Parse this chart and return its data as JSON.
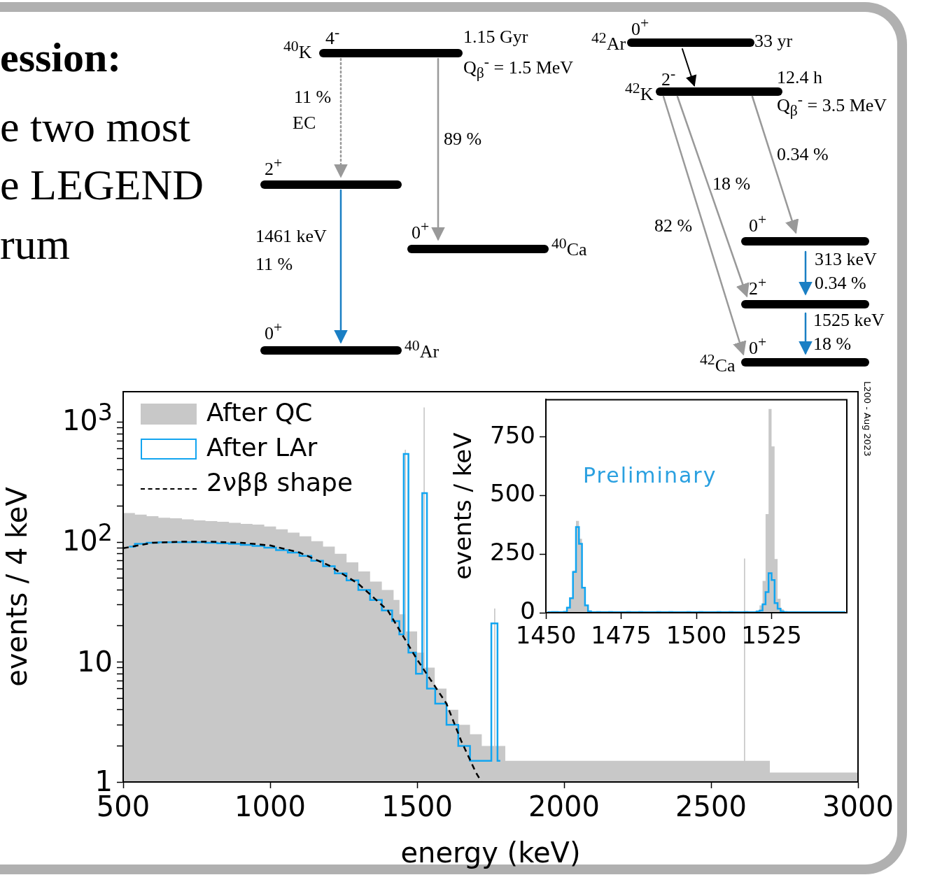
{
  "chart_data": [
    {
      "type": "other",
      "annotations": [
        "ession:",
        "e two most",
        "e LEGEND",
        "rum",
        "$^{40}$K",
        "4$^{-}$",
        "1.15 Gyr",
        "Q$_{β}$$^{-}$ = 1.5 MeV",
        "11 %",
        "EC",
        "89 %",
        "2$^{+}$",
        "0$^{+}$",
        "$^{40}$Ca",
        "1461 keV",
        "11 %",
        "0$^{+}$",
        "$^{40}$Ar",
        "0$^{+}$",
        "$^{42}$Ar",
        "33 yr",
        "2$^{-}$",
        "$^{42}$K",
        "12.4 h",
        "Q$_{β}$$^{-}$ = 3.5 MeV",
        "0.34 %",
        "18 %",
        "82 %",
        "0$^{+}$",
        "313 keV",
        "0.34 %",
        "2$^{+}$",
        "1525 keV",
        "18 %",
        "0$^{+}$",
        "$^{42}$Ca"
      ]
    },
    {
      "type": "histogram",
      "xlabel": "energy (keV)",
      "ylabel": "events / 4 keV",
      "log": "y",
      "legend": "top left",
      "annotations": [
        "L200 - Aug 2023"
      ],
      "xlim": [
        500,
        3000
      ],
      "ylim": [
        1,
        1800
      ],
      "xticks": [
        500,
        1000,
        1500,
        2000,
        2500,
        3000
      ],
      "yticks": [
        1,
        {
          "value": 2,
          "label": null
        },
        {
          "value": 3,
          "label": null
        },
        {
          "value": 4,
          "label": null
        },
        {
          "value": 5,
          "label": null
        },
        {
          "value": 6,
          "label": null
        },
        {
          "value": 7,
          "label": null
        },
        {
          "value": 8,
          "label": null
        },
        {
          "value": 9,
          "label": null
        },
        10,
        {
          "value": 20,
          "label": null
        },
        {
          "value": 30,
          "label": null
        },
        {
          "value": 40,
          "label": null
        },
        {
          "value": 50,
          "label": null
        },
        {
          "value": 60,
          "label": null
        },
        {
          "value": 70,
          "label": null
        },
        {
          "value": 80,
          "label": null
        },
        {
          "value": 90,
          "label": null
        },
        {
          "value": 100,
          "label": "10$^{2}$"
        },
        {
          "value": 200,
          "label": null
        },
        {
          "value": 300,
          "label": null
        },
        {
          "value": 400,
          "label": null
        },
        {
          "value": 500,
          "label": null
        },
        {
          "value": 600,
          "label": null
        },
        {
          "value": 700,
          "label": null
        },
        {
          "value": 800,
          "label": null
        },
        {
          "value": 900,
          "label": null
        },
        {
          "value": 1000,
          "label": "10$^{3}$"
        }
      ],
      "bins": [
        500,
        540,
        580,
        620,
        660,
        700,
        740,
        780,
        820,
        860,
        900,
        940,
        980,
        1020,
        1060,
        1100,
        1140,
        1180,
        1220,
        1260,
        1300,
        1340,
        1380,
        1420,
        1440,
        1458,
        1462,
        1500,
        1522,
        1526,
        1560,
        1600,
        1640,
        1680,
        1720,
        1762,
        1766,
        1800,
        1900,
        2000,
        2100,
        2200,
        2300,
        2400,
        2500,
        2612,
        2616,
        2700,
        2800,
        2900,
        3000
      ],
      "series": [
        {
          "name": "After QC",
          "type": "histogram",
          "color": "#c8c8c8",
          "values": [
            175,
            170,
            165,
            160,
            158,
            155,
            152,
            150,
            148,
            145,
            142,
            140,
            135,
            128,
            120,
            112,
            102,
            92,
            80,
            68,
            57,
            47,
            40,
            33,
            25,
            590,
            18,
            12,
            1330,
            9,
            6,
            4,
            3,
            2.5,
            2,
            28,
            2,
            1.5,
            1.5,
            1.5,
            1.5,
            1.5,
            1.5,
            1.5,
            1.5,
            73,
            1.5,
            1.2,
            1.2,
            1.2
          ]
        },
        {
          "name": "After LAr",
          "type": "step",
          "color": "#12a5f0",
          "x": [
            520,
            560,
            600,
            640,
            680,
            720,
            760,
            800,
            840,
            880,
            920,
            960,
            1000,
            1040,
            1080,
            1120,
            1160,
            1200,
            1240,
            1280,
            1320,
            1360,
            1400,
            1430,
            1449,
            1460,
            1481,
            1511,
            1524,
            1543,
            1580,
            1620,
            1660,
            1700,
            1741,
            1764,
            1783
          ],
          "values": [
            92,
            97,
            99,
            100,
            100,
            100,
            100,
            99,
            98,
            97,
            95,
            93,
            90,
            86,
            82,
            77,
            70,
            63,
            55,
            48,
            40,
            33,
            27,
            22,
            17,
            545,
            12,
            8,
            257,
            6,
            4.5,
            3,
            2,
            1.5,
            1.5,
            21,
            1.5
          ]
        },
        {
          "name": "2νββ shape",
          "type": "line",
          "color": "#000000",
          "line_style": "dashed",
          "x": [
            500,
            600,
            700,
            800,
            900,
            1000,
            1100,
            1200,
            1300,
            1400,
            1500,
            1600,
            1650,
            1700,
            1719
          ],
          "values": [
            89,
            99,
            101,
            101,
            99,
            94,
            82,
            64,
            45,
            27,
            10.5,
            4.5,
            2.2,
            1.2,
            1
          ]
        }
      ]
    },
    {
      "type": "histogram",
      "ylabel": "events / keV",
      "annotations": [
        "Preliminary"
      ],
      "xlim": [
        1450,
        1550
      ],
      "ylim": [
        0,
        910
      ],
      "xticks": [
        1450,
        1475,
        1500,
        1525
      ],
      "yticks": [
        0,
        250,
        500,
        750
      ],
      "bins": [
        1450,
        1451,
        1452,
        1453,
        1454,
        1455,
        1456,
        1457,
        1458,
        1459,
        1460,
        1461,
        1462,
        1463,
        1464,
        1465,
        1466,
        1467,
        1468,
        1469,
        1470,
        1471,
        1472,
        1473,
        1474,
        1475,
        1476,
        1477,
        1478,
        1479,
        1480,
        1481,
        1482,
        1483,
        1484,
        1485,
        1486,
        1487,
        1488,
        1489,
        1490,
        1491,
        1492,
        1493,
        1494,
        1495,
        1496,
        1497,
        1498,
        1499,
        1500,
        1501,
        1502,
        1503,
        1504,
        1505,
        1506,
        1507,
        1508,
        1509,
        1510,
        1511,
        1512,
        1513,
        1514,
        1515,
        1516,
        1517,
        1518,
        1519,
        1520,
        1521,
        1522,
        1523,
        1524,
        1525,
        1526,
        1527,
        1528,
        1529,
        1530,
        1531,
        1532,
        1533,
        1534,
        1535,
        1536,
        1537,
        1538,
        1539,
        1540,
        1541,
        1542,
        1543,
        1544,
        1545,
        1546,
        1547,
        1548,
        1549,
        1550
      ],
      "series": [
        {
          "type": "histogram",
          "color": "#c8c8c8",
          "values": [
            3,
            3,
            4,
            4,
            3,
            3,
            5,
            22,
            65,
            180,
            392,
            316,
            107,
            31,
            8,
            3,
            3,
            4,
            3,
            3,
            3,
            4,
            3,
            3,
            3,
            3,
            3,
            4,
            3,
            3,
            3,
            4,
            3,
            3,
            3,
            3,
            3,
            4,
            3,
            3,
            3,
            4,
            3,
            3,
            3,
            3,
            3,
            4,
            3,
            3,
            3,
            4,
            3,
            3,
            3,
            3,
            3,
            4,
            3,
            3,
            3,
            4,
            3,
            3,
            3,
            3,
            4,
            3,
            3,
            3,
            10,
            31,
            136,
            421,
            870,
            710,
            229,
            60,
            15,
            4,
            3,
            3,
            3,
            3,
            3,
            3,
            3,
            3,
            3,
            3,
            3,
            3,
            3,
            3,
            3,
            3,
            3,
            3,
            3,
            3
          ]
        },
        {
          "type": "step",
          "color": "#12a5f0",
          "x": [
            1450.5,
            1451.5,
            1452.5,
            1453.5,
            1454.5,
            1455.5,
            1456.5,
            1457.5,
            1458.5,
            1459.5,
            1460.5,
            1461.5,
            1462.5,
            1463.5,
            1464.5,
            1465.5,
            1466.5,
            1467.5,
            1468.5,
            1469.5,
            1470.5,
            1471.5,
            1472.5,
            1473.5,
            1474.5,
            1475.5,
            1476.5,
            1477.5,
            1478.5,
            1479.5,
            1480.5,
            1481.5,
            1482.5,
            1483.5,
            1484.5,
            1485.5,
            1486.5,
            1487.5,
            1488.5,
            1489.5,
            1490.5,
            1491.5,
            1492.5,
            1493.5,
            1494.5,
            1495.5,
            1496.5,
            1497.5,
            1498.5,
            1499.5,
            1500.5,
            1501.5,
            1502.5,
            1503.5,
            1504.5,
            1505.5,
            1506.5,
            1507.5,
            1508.5,
            1509.5,
            1510.5,
            1511.5,
            1512.5,
            1513.5,
            1514.5,
            1515.5,
            1516.5,
            1517.5,
            1518.5,
            1519.5,
            1520.5,
            1521.5,
            1522.5,
            1523.5,
            1524.5,
            1525.5,
            1526.5,
            1527.5,
            1528.5,
            1529.5,
            1530.5,
            1531.5,
            1532.5,
            1533.5,
            1534.5,
            1535.5,
            1536.5,
            1537.5,
            1538.5,
            1539.5,
            1540.5,
            1541.5,
            1542.5,
            1543.5,
            1544.5,
            1545.5,
            1546.5,
            1547.5,
            1548.5,
            1549.5
          ],
          "values": [
            2,
            2,
            3,
            3,
            2,
            2,
            4,
            22,
            62,
            174,
            366,
            294,
            107,
            31,
            6,
            2,
            2,
            3,
            2,
            2,
            2,
            3,
            2,
            2,
            2,
            2,
            2,
            3,
            2,
            2,
            2,
            3,
            2,
            2,
            2,
            2,
            2,
            3,
            2,
            2,
            2,
            3,
            2,
            2,
            2,
            2,
            2,
            3,
            2,
            2,
            2,
            3,
            2,
            2,
            2,
            2,
            2,
            3,
            2,
            2,
            2,
            3,
            2,
            2,
            2,
            2,
            3,
            2,
            2,
            2,
            5,
            9,
            36,
            88,
            169,
            140,
            41,
            17,
            5,
            3,
            2,
            2,
            2,
            2,
            2,
            2,
            2,
            2,
            2,
            2,
            2,
            2,
            2,
            2,
            2,
            2,
            2,
            2,
            2,
            2
          ]
        }
      ]
    }
  ]
}
